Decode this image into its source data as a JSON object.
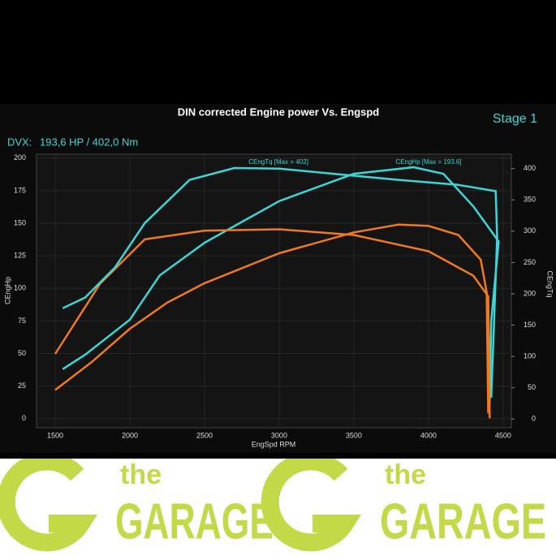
{
  "chart_data": {
    "type": "line",
    "title": "DIN corrected Engine power Vs. Engspd",
    "stage": "Stage 1",
    "summary_label": "DVX:",
    "summary": "193,6 HP / 402,0 Nm",
    "xlabel": "EngSpd RPM",
    "ylabel": "CEngHp",
    "y2label": "CEngTq",
    "annotations": [
      "CEngTq [Max = 402]",
      "CEngHp [Max = 193.6]"
    ],
    "xlim": [
      1375,
      4555
    ],
    "xticks": [
      1500,
      2000,
      2500,
      3000,
      3500,
      4000,
      4500
    ],
    "ylim": [
      -7,
      203
    ],
    "yticks": [
      0,
      25,
      50,
      75,
      100,
      125,
      150,
      175,
      200
    ],
    "y2lim": [
      -14,
      423
    ],
    "y2ticks": [
      0,
      50,
      100,
      150,
      200,
      250,
      300,
      350,
      400
    ],
    "grid": true,
    "series": [
      {
        "color": "#f07a20",
        "axis": "y",
        "x": [
          1500,
          1750,
          2000,
          2250,
          2500,
          3000,
          3500,
          3800,
          4000,
          4200,
          4350,
          4390,
          4400
        ],
        "values": [
          22,
          44,
          69,
          89,
          104,
          127,
          143,
          149,
          148,
          141,
          122,
          97,
          4
        ]
      },
      {
        "color": "#3cd6d6",
        "axis": "y",
        "x": [
          1550,
          1700,
          2000,
          2200,
          2500,
          3000,
          3500,
          3900,
          4100,
          4300,
          4470,
          4420,
          4410
        ],
        "values": [
          38,
          49,
          76,
          110,
          135,
          167,
          188,
          193,
          188,
          163,
          136,
          75,
          12
        ]
      },
      {
        "color": "#f07a20",
        "axis": "y2",
        "x": [
          1500,
          1800,
          2100,
          2500,
          3000,
          3500,
          4000,
          4300,
          4400,
          4410
        ],
        "values": [
          104,
          216,
          287,
          301,
          303,
          294,
          268,
          229,
          196,
          1
        ]
      },
      {
        "color": "#3cd6d6",
        "axis": "y2",
        "x": [
          1550,
          1700,
          1900,
          2100,
          2400,
          2700,
          3000,
          3400,
          3800,
          4200,
          4450,
          4460,
          4420
        ],
        "values": [
          177,
          194,
          242,
          313,
          382,
          401,
          400,
          391,
          382,
          374,
          364,
          290,
          34
        ]
      }
    ]
  },
  "banner": {
    "small": "the",
    "big": "GARAGE"
  }
}
